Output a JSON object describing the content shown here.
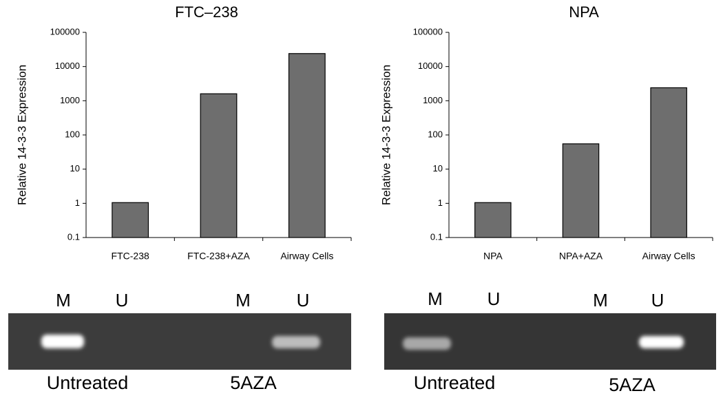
{
  "chart_data": [
    {
      "type": "bar",
      "title": "FTC–238",
      "y_label": "Relative 14-3-3 Expression",
      "categories": [
        "FTC-238",
        "FTC-238+AZA",
        "Airway Cells"
      ],
      "values": [
        1.05,
        1600,
        24000
      ],
      "color": "#6e6e6e",
      "log_scale": true,
      "ylim": [
        0.1,
        100000
      ],
      "yticks": [
        0.1,
        1,
        10,
        100,
        1000,
        10000,
        100000
      ],
      "grid": false
    },
    {
      "type": "bar",
      "title": "NPA",
      "y_label": "Relative 14-3-3 Expression",
      "categories": [
        "NPA",
        "NPA+AZA",
        "Airway Cells"
      ],
      "values": [
        1.05,
        55,
        2400
      ],
      "color": "#6e6e6e",
      "log_scale": true,
      "ylim": [
        0.1,
        100000
      ],
      "yticks": [
        0.1,
        1,
        10,
        100,
        1000,
        10000,
        100000
      ],
      "grid": false
    }
  ],
  "gels": [
    {
      "lanes": [
        "M",
        "U",
        "M",
        "U"
      ],
      "groups": [
        "Untreated",
        "5AZA"
      ]
    },
    {
      "lanes": [
        "M",
        "U",
        "M",
        "U"
      ],
      "groups": [
        "Untreated",
        "5AZA"
      ]
    }
  ]
}
